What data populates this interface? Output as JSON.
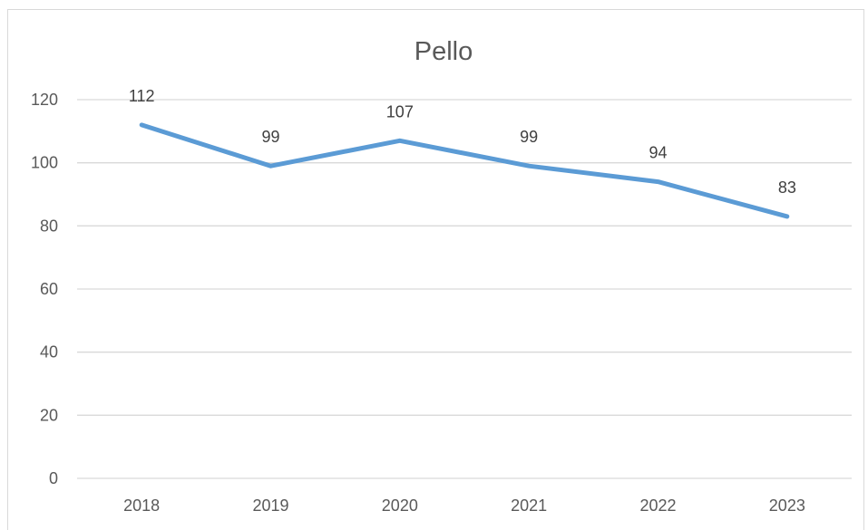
{
  "chart_data": {
    "type": "line",
    "title": "Pello",
    "xlabel": "",
    "ylabel": "",
    "categories": [
      "2018",
      "2019",
      "2020",
      "2021",
      "2022",
      "2023"
    ],
    "series": [
      {
        "values": [
          112,
          99,
          107,
          99,
          94,
          83
        ],
        "color": "#5b9bd5"
      }
    ],
    "ylim": [
      0,
      120
    ],
    "yticks": [
      0,
      20,
      40,
      60,
      80,
      100,
      120
    ],
    "grid": true,
    "legend": "none",
    "data_labels": true
  }
}
